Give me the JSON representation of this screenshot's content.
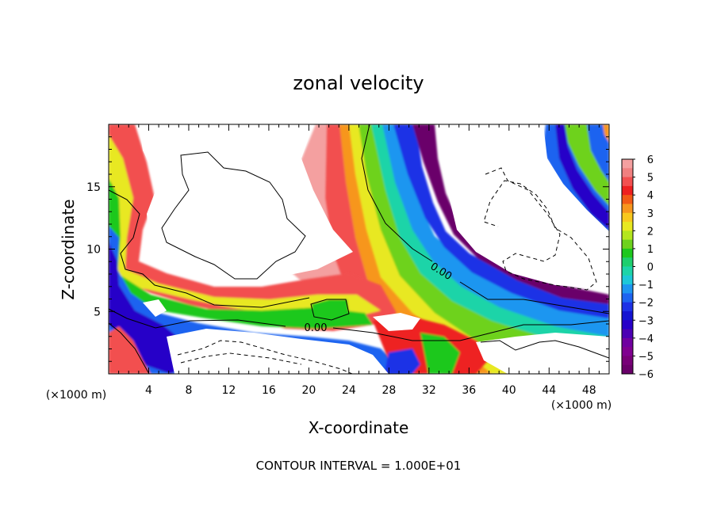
{
  "chart_data": {
    "type": "heatmap",
    "title": "zonal velocity",
    "xlabel": "X-coordinate",
    "ylabel": "Z-coordinate",
    "x_unit_left": "(×1000 m)",
    "x_unit_right": "(×1000 m)",
    "xlim": [
      0,
      50
    ],
    "ylim": [
      0,
      20
    ],
    "x_ticks": [
      4,
      8,
      12,
      16,
      20,
      24,
      28,
      32,
      36,
      40,
      44,
      48
    ],
    "y_ticks": [
      5,
      10,
      15
    ],
    "colorbar": {
      "min": -6,
      "max": 6,
      "tick_labels": [
        "6",
        "5",
        "4",
        "3",
        "2",
        "1",
        "0",
        "−1",
        "−2",
        "−3",
        "−4",
        "−5",
        "−6"
      ],
      "colors_top_to_bottom": [
        "#f4a0a0",
        "#f08080",
        "#f25050",
        "#ee2020",
        "#f25a16",
        "#f7961e",
        "#f8c81e",
        "#e8e820",
        "#b4e61e",
        "#6ed21e",
        "#1ec81e",
        "#1ecf6e",
        "#1ed4a8",
        "#1ec8d8",
        "#1e96f0",
        "#1e64f0",
        "#1e32e6",
        "#1414d2",
        "#2800c8",
        "#4c00b4",
        "#7000a0",
        "#800090",
        "#780078",
        "#6a006a"
      ]
    },
    "contour_labels": [
      "0.00",
      "0.00"
    ],
    "footer": "CONTOUR INTERVAL = 1.000E+01"
  }
}
